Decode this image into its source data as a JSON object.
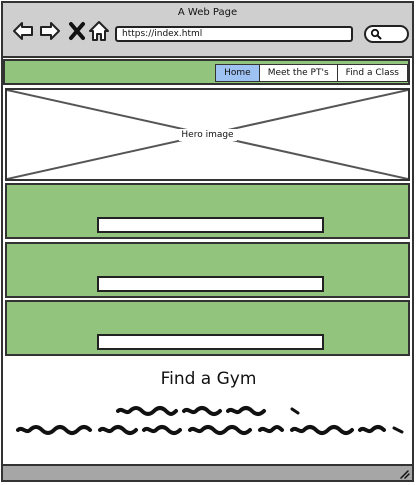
{
  "window": {
    "title": "A Web Page"
  },
  "browser": {
    "url": "https://index.html"
  },
  "nav": {
    "items": [
      {
        "label": "Home",
        "active": true
      },
      {
        "label": "Meet the PT's",
        "active": false
      },
      {
        "label": "Find a Class",
        "active": false
      }
    ]
  },
  "hero": {
    "label": "Hero image"
  },
  "section": {
    "heading": "Find a Gym"
  },
  "colors": {
    "accent": "#93c47d",
    "active_tab": "#9ec2f2",
    "chrome": "#cfcfcf"
  },
  "icons": [
    "back-arrow-icon",
    "forward-arrow-icon",
    "close-icon",
    "home-icon",
    "search-icon",
    "resize-grip-icon"
  ]
}
